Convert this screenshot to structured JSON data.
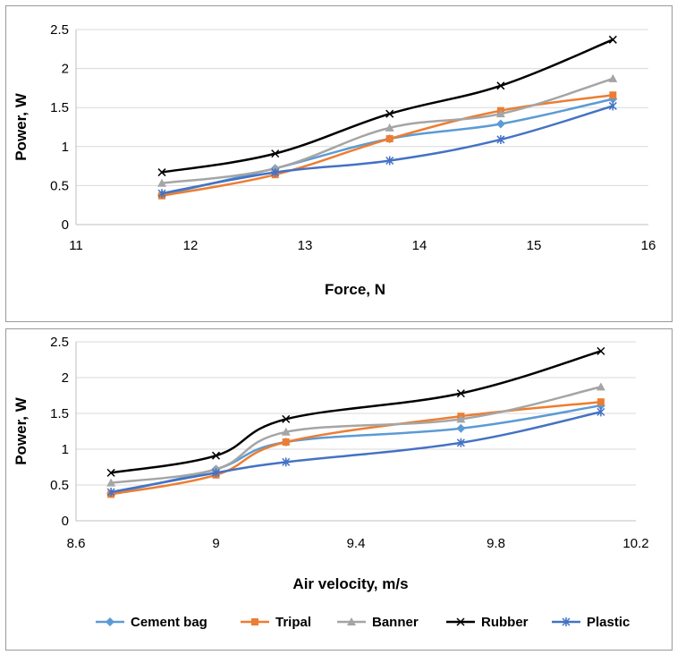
{
  "chart_data": [
    {
      "type": "line",
      "title": "",
      "xlabel": "Force, N",
      "ylabel": "Power, W",
      "xlim": [
        11,
        16
      ],
      "ylim": [
        0,
        2.5
      ],
      "xticks": [
        "11",
        "12",
        "13",
        "14",
        "15",
        "16"
      ],
      "yticks": [
        "0",
        "0.5",
        "1",
        "1.5",
        "2",
        "2.5"
      ],
      "grid": "horizontal",
      "series": [
        {
          "name": "Cement bag",
          "color": "#5B9BD5",
          "marker": "diamond",
          "x": [
            11.75,
            12.74,
            13.74,
            14.71,
            15.69
          ],
          "y": [
            0.38,
            0.72,
            1.1,
            1.29,
            1.61
          ]
        },
        {
          "name": "Tripal",
          "color": "#ED7D31",
          "marker": "square",
          "x": [
            11.75,
            12.74,
            13.74,
            14.71,
            15.69
          ],
          "y": [
            0.37,
            0.64,
            1.1,
            1.46,
            1.66
          ]
        },
        {
          "name": "Banner",
          "color": "#A5A5A5",
          "marker": "triangle",
          "x": [
            11.75,
            12.74,
            13.74,
            14.71,
            15.69
          ],
          "y": [
            0.53,
            0.72,
            1.24,
            1.42,
            1.87
          ]
        },
        {
          "name": "Rubber",
          "color": "#000000",
          "marker": "x",
          "x": [
            11.75,
            12.74,
            13.74,
            14.71,
            15.69
          ],
          "y": [
            0.67,
            0.91,
            1.42,
            1.78,
            2.37
          ]
        },
        {
          "name": "Plastic",
          "color": "#4472C4",
          "marker": "star",
          "x": [
            11.75,
            12.74,
            13.74,
            14.71,
            15.69
          ],
          "y": [
            0.4,
            0.67,
            0.82,
            1.09,
            1.52
          ]
        }
      ]
    },
    {
      "type": "line",
      "title": "",
      "xlabel": "Air velocity, m/s",
      "ylabel": "Power, W",
      "xlim": [
        8.6,
        10.2
      ],
      "ylim": [
        0,
        2.5
      ],
      "xticks": [
        "8.6",
        "9",
        "9.4",
        "9.8",
        "10.2"
      ],
      "yticks": [
        "0",
        "0.5",
        "1",
        "1.5",
        "2",
        "2.5"
      ],
      "grid": "horizontal",
      "series": [
        {
          "name": "Cement bag",
          "color": "#5B9BD5",
          "marker": "diamond",
          "x": [
            8.7,
            9.0,
            9.2,
            9.7,
            10.1
          ],
          "y": [
            0.38,
            0.72,
            1.1,
            1.29,
            1.61
          ]
        },
        {
          "name": "Tripal",
          "color": "#ED7D31",
          "marker": "square",
          "x": [
            8.7,
            9.0,
            9.2,
            9.7,
            10.1
          ],
          "y": [
            0.37,
            0.64,
            1.1,
            1.46,
            1.66
          ]
        },
        {
          "name": "Banner",
          "color": "#A5A5A5",
          "marker": "triangle",
          "x": [
            8.7,
            9.0,
            9.2,
            9.7,
            10.1
          ],
          "y": [
            0.53,
            0.72,
            1.24,
            1.42,
            1.87
          ]
        },
        {
          "name": "Rubber",
          "color": "#000000",
          "marker": "x",
          "x": [
            8.7,
            9.0,
            9.2,
            9.7,
            10.1
          ],
          "y": [
            0.67,
            0.91,
            1.42,
            1.78,
            2.37
          ]
        },
        {
          "name": "Plastic",
          "color": "#4472C4",
          "marker": "star",
          "x": [
            8.7,
            9.0,
            9.2,
            9.7,
            10.1
          ],
          "y": [
            0.4,
            0.67,
            0.82,
            1.09,
            1.52
          ]
        }
      ]
    }
  ],
  "legend": {
    "placement": "bottom",
    "items": [
      "Cement bag",
      "Tripal",
      "Banner",
      "Rubber",
      "Plastic"
    ]
  }
}
